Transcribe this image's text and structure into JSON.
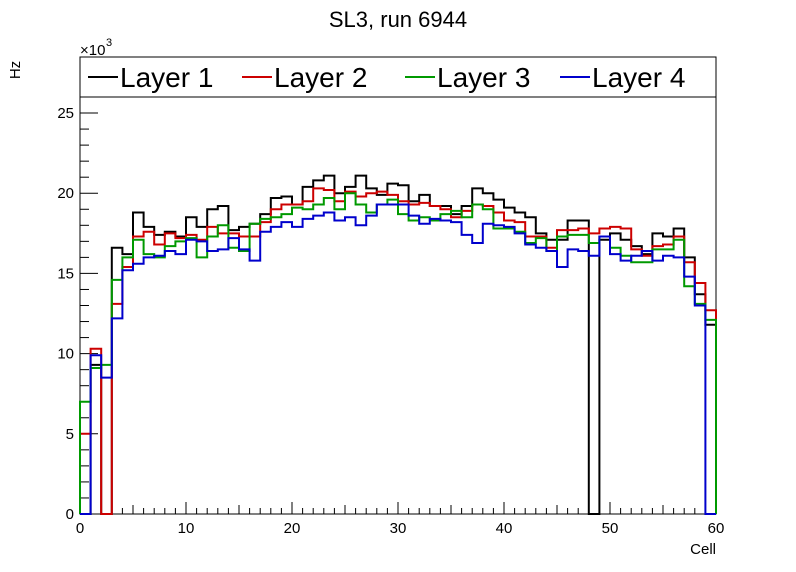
{
  "chart_data": {
    "type": "line",
    "title": "SL3, run 6944",
    "xlabel": "Cell",
    "ylabel": "Hz",
    "y_multiplier_label": "×10",
    "y_multiplier_exp": "3",
    "xlim": [
      0,
      60
    ],
    "ylim": [
      0,
      26000
    ],
    "x_ticks": [
      0,
      10,
      20,
      30,
      40,
      50,
      60
    ],
    "x_tick_labels": [
      "0",
      "10",
      "20",
      "30",
      "40",
      "50",
      "60"
    ],
    "y_ticks": [
      0,
      5000,
      10000,
      15000,
      20000,
      25000
    ],
    "y_tick_labels": [
      "0",
      "5",
      "10",
      "15",
      "20",
      "25"
    ],
    "grid": false,
    "legend_position": "top",
    "bin_width": 1,
    "series": [
      {
        "name": "Layer 1",
        "color": "#000000",
        "values": [
          0,
          9300,
          0,
          16600,
          16200,
          18800,
          17900,
          17400,
          17600,
          17300,
          18500,
          17900,
          19000,
          19200,
          17700,
          17900,
          18100,
          18700,
          19700,
          19800,
          19300,
          20400,
          20800,
          21100,
          20000,
          20400,
          21100,
          20300,
          19900,
          20600,
          20500,
          19500,
          19900,
          19200,
          19200,
          18700,
          19200,
          20300,
          20000,
          19600,
          19100,
          18800,
          18500,
          17500,
          17100,
          17100,
          18300,
          18300,
          0,
          17100,
          17500,
          17100,
          16700,
          16200,
          17500,
          17300,
          17800,
          16000,
          13700,
          11800
        ]
      },
      {
        "name": "Layer 2",
        "color": "#cc0000",
        "values": [
          5000,
          10300,
          0,
          13100,
          15400,
          17300,
          17600,
          16800,
          17500,
          17200,
          17400,
          17100,
          17900,
          17500,
          17500,
          17300,
          17300,
          18200,
          19000,
          19300,
          19300,
          19500,
          20300,
          20200,
          19500,
          20100,
          19800,
          20000,
          20100,
          19900,
          19500,
          19300,
          19400,
          19200,
          19000,
          18500,
          18900,
          19300,
          19200,
          18800,
          18300,
          18200,
          17300,
          17300,
          16600,
          17700,
          17700,
          17800,
          17500,
          17800,
          17900,
          17800,
          16500,
          16100,
          16700,
          16800,
          17300,
          15700,
          14400,
          12700
        ]
      },
      {
        "name": "Layer 3",
        "color": "#009900",
        "values": [
          7000,
          9100,
          9300,
          14600,
          16000,
          17100,
          16200,
          16000,
          16700,
          17000,
          17200,
          16000,
          17300,
          18000,
          16600,
          16400,
          18100,
          18400,
          18500,
          18700,
          19100,
          19000,
          19300,
          19700,
          19000,
          20000,
          19300,
          18800,
          19300,
          19600,
          18700,
          18300,
          18500,
          18300,
          18700,
          18900,
          18500,
          19300,
          19000,
          17800,
          17800,
          17600,
          16900,
          17200,
          16400,
          17300,
          17400,
          17400,
          16900,
          17300,
          16600,
          16100,
          15700,
          15700,
          16500,
          16500,
          17100,
          14200,
          13100,
          12100
        ]
      },
      {
        "name": "Layer 4",
        "color": "#0000cc",
        "values": [
          0,
          9900,
          8500,
          12200,
          15200,
          15600,
          16000,
          16100,
          16400,
          16200,
          17100,
          17000,
          16400,
          16500,
          17200,
          16500,
          15800,
          17600,
          17900,
          18200,
          17900,
          18400,
          18600,
          18800,
          18300,
          18500,
          18000,
          18600,
          19300,
          19300,
          19300,
          18600,
          18100,
          18400,
          18300,
          18200,
          17400,
          16900,
          18100,
          18000,
          17900,
          17500,
          16800,
          16600,
          16400,
          15400,
          16500,
          16400,
          16100,
          17300,
          16200,
          15800,
          16100,
          16400,
          15800,
          16100,
          16000,
          14800,
          13000,
          0
        ]
      }
    ]
  }
}
